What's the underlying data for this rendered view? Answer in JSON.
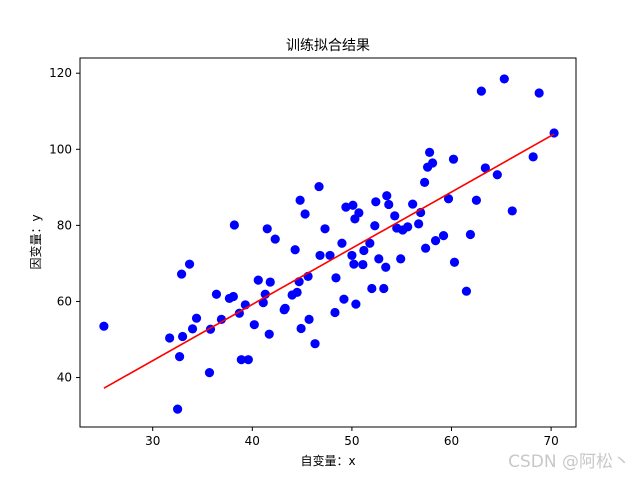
{
  "chart_data": {
    "type": "scatter",
    "title": "训练拟合结果",
    "xlabel": "自变量：x",
    "ylabel": "因变量：y",
    "xlim": [
      22.7,
      72.5
    ],
    "ylim": [
      27,
      124
    ],
    "xticks": [
      30,
      40,
      50,
      60,
      70
    ],
    "yticks": [
      40,
      60,
      80,
      100,
      120
    ],
    "xtick_labels": [
      "30",
      "40",
      "50",
      "60",
      "70"
    ],
    "ytick_labels": [
      "40",
      "60",
      "80",
      "100",
      "120"
    ],
    "grid": false,
    "point_color": "#0000ff",
    "line_color": "#ff0000",
    "series": [
      {
        "kind": "points",
        "x": [
          25.1,
          31.7,
          32.5,
          32.7,
          32.9,
          33.0,
          33.7,
          34.0,
          34.4,
          35.7,
          35.8,
          36.4,
          36.9,
          37.7,
          38.1,
          38.2,
          38.7,
          38.9,
          39.3,
          39.6,
          40.2,
          40.6,
          41.1,
          41.3,
          41.5,
          41.7,
          41.8,
          42.3,
          43.2,
          43.3,
          44.0,
          44.3,
          44.5,
          44.7,
          44.8,
          44.9,
          45.3,
          45.6,
          45.7,
          46.3,
          46.7,
          46.8,
          47.3,
          47.8,
          48.3,
          48.4,
          49.0,
          49.2,
          49.4,
          50.0,
          50.1,
          50.2,
          50.3,
          50.4,
          50.7,
          51.1,
          51.2,
          51.8,
          52.0,
          52.3,
          52.4,
          52.7,
          53.2,
          53.4,
          53.5,
          53.7,
          54.3,
          54.5,
          54.9,
          55.1,
          55.6,
          56.1,
          56.7,
          56.9,
          57.3,
          57.4,
          57.6,
          57.8,
          58.1,
          58.4,
          59.2,
          59.7,
          60.2,
          60.3,
          61.5,
          61.9,
          62.5,
          63.0,
          63.4,
          64.6,
          65.3,
          66.1,
          68.2,
          68.8,
          70.3
        ],
        "y": [
          53.5,
          50.4,
          31.7,
          45.5,
          67.2,
          50.8,
          69.8,
          52.8,
          55.6,
          41.3,
          52.7,
          61.9,
          55.3,
          60.8,
          61.3,
          80.1,
          56.9,
          44.7,
          59.1,
          44.7,
          53.9,
          65.6,
          59.7,
          61.9,
          79.1,
          51.4,
          65.1,
          76.4,
          57.8,
          58.2,
          61.7,
          73.6,
          62.4,
          65.2,
          86.6,
          52.9,
          83.0,
          66.6,
          55.3,
          48.9,
          90.2,
          72.1,
          79.1,
          72.1,
          57.1,
          66.2,
          75.3,
          60.6,
          84.8,
          72.1,
          85.3,
          69.8,
          81.7,
          59.3,
          83.3,
          69.7,
          73.4,
          75.3,
          63.4,
          79.9,
          86.2,
          71.2,
          63.4,
          69.0,
          87.8,
          85.5,
          82.5,
          79.3,
          71.2,
          78.8,
          79.6,
          85.6,
          80.4,
          83.4,
          91.3,
          74.0,
          95.3,
          99.2,
          96.4,
          76.0,
          77.3,
          87.0,
          97.4,
          70.3,
          62.7,
          77.6,
          86.6,
          115.3,
          95.1,
          93.3,
          118.5,
          83.8,
          98.0,
          114.8,
          104.3
        ]
      },
      {
        "kind": "line",
        "x": [
          25.1,
          70.3
        ],
        "y": [
          37.2,
          104.0
        ]
      }
    ]
  },
  "watermark": "CSDN @阿松丶"
}
